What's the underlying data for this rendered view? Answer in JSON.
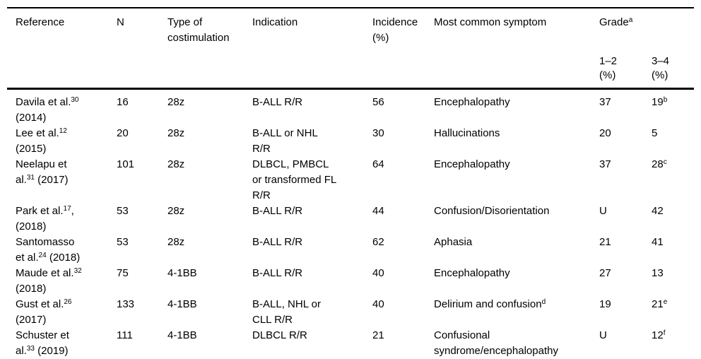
{
  "table": {
    "header": {
      "reference": "Reference",
      "n": "N",
      "costimulation": [
        {
          "t": "Type of"
        },
        {
          "br": true
        },
        {
          "t": "costimulation"
        }
      ],
      "indication": "Indication",
      "incidence": [
        {
          "t": "Incidence"
        },
        {
          "br": true
        },
        {
          "t": "(%)"
        }
      ],
      "symptom": "Most common symptom",
      "grade": [
        {
          "t": "Grade"
        },
        {
          "s": "a"
        }
      ],
      "grade_1_2": [
        {
          "t": "1–2"
        },
        {
          "br": true
        },
        {
          "t": "(%)"
        }
      ],
      "grade_3_4": [
        {
          "t": "3–4"
        },
        {
          "br": true
        },
        {
          "t": "(%)"
        }
      ]
    },
    "rows": [
      {
        "reference": [
          {
            "t": "Davila et al."
          },
          {
            "s": "30"
          },
          {
            "br": true
          },
          {
            "t": "(2014)"
          }
        ],
        "n": "16",
        "costimulation": "28z",
        "indication": "B-ALL R/R",
        "incidence": "56",
        "symptom": "Encephalopathy",
        "grade_1_2": "37",
        "grade_3_4": [
          {
            "t": "19"
          },
          {
            "s": "b"
          }
        ]
      },
      {
        "reference": [
          {
            "t": "Lee et al."
          },
          {
            "s": "12"
          },
          {
            "br": true
          },
          {
            "t": "(2015)"
          }
        ],
        "n": "20",
        "costimulation": "28z",
        "indication": [
          {
            "t": "B-ALL or NHL"
          },
          {
            "br": true
          },
          {
            "t": "R/R"
          }
        ],
        "incidence": "30",
        "symptom": "Hallucinations",
        "grade_1_2": "20",
        "grade_3_4": "5"
      },
      {
        "reference": [
          {
            "t": "Neelapu et"
          },
          {
            "br": true
          },
          {
            "t": "al."
          },
          {
            "s": "31"
          },
          {
            "t": " (2017)"
          }
        ],
        "n": "101",
        "costimulation": "28z",
        "indication": [
          {
            "t": "DLBCL, PMBCL"
          },
          {
            "br": true
          },
          {
            "t": "or transformed FL"
          },
          {
            "br": true
          },
          {
            "t": "R/R"
          }
        ],
        "incidence": "64",
        "symptom": "Encephalopathy",
        "grade_1_2": "37",
        "grade_3_4": [
          {
            "t": "28"
          },
          {
            "s": "c"
          }
        ]
      },
      {
        "reference": [
          {
            "t": "Park et al."
          },
          {
            "s": "17"
          },
          {
            "t": ","
          },
          {
            "br": true
          },
          {
            "t": "(2018)"
          }
        ],
        "n": "53",
        "costimulation": "28z",
        "indication": "B-ALL R/R",
        "incidence": "44",
        "symptom": "Confusion/Disorientation",
        "grade_1_2": "U",
        "grade_3_4": "42"
      },
      {
        "reference": [
          {
            "t": "Santomasso"
          },
          {
            "br": true
          },
          {
            "t": "et al."
          },
          {
            "s": "24"
          },
          {
            "t": " (2018)"
          }
        ],
        "n": "53",
        "costimulation": "28z",
        "indication": "B-ALL R/R",
        "incidence": "62",
        "symptom": "Aphasia",
        "grade_1_2": "21",
        "grade_3_4": "41"
      },
      {
        "reference": [
          {
            "t": "Maude et al."
          },
          {
            "s": "32"
          },
          {
            "br": true
          },
          {
            "t": "(2018)"
          }
        ],
        "n": "75",
        "costimulation": "4-1BB",
        "indication": "B-ALL R/R",
        "incidence": "40",
        "symptom": "Encephalopathy",
        "grade_1_2": "27",
        "grade_3_4": "13"
      },
      {
        "reference": [
          {
            "t": "Gust et al."
          },
          {
            "s": "26"
          },
          {
            "br": true
          },
          {
            "t": "(2017)"
          }
        ],
        "n": "133",
        "costimulation": "4-1BB",
        "indication": [
          {
            "t": "B-ALL, NHL or"
          },
          {
            "br": true
          },
          {
            "t": "CLL R/R"
          }
        ],
        "incidence": "40",
        "symptom": [
          {
            "t": "Delirium and confusion"
          },
          {
            "s": "d"
          }
        ],
        "grade_1_2": "19",
        "grade_3_4": [
          {
            "t": "21"
          },
          {
            "s": "e"
          }
        ]
      },
      {
        "reference": [
          {
            "t": "Schuster et"
          },
          {
            "br": true
          },
          {
            "t": "al."
          },
          {
            "s": "33"
          },
          {
            "t": " (2019)"
          }
        ],
        "n": "111",
        "costimulation": "4-1BB",
        "indication": "DLBCL R/R",
        "incidence": "21",
        "symptom": [
          {
            "t": "Confusional"
          },
          {
            "br": true
          },
          {
            "t": "syndrome/encephalopathy"
          }
        ],
        "grade_1_2": "U",
        "grade_3_4": [
          {
            "t": "12"
          },
          {
            "s": "f"
          }
        ]
      }
    ]
  }
}
